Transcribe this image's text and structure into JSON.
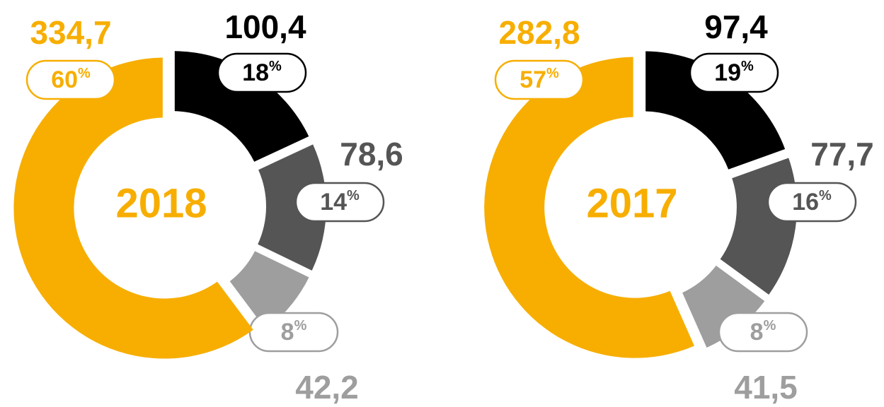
{
  "chart_data": [
    {
      "type": "pie",
      "center_label": "2018",
      "center_weight": "bold",
      "values": [
        100.4,
        78.6,
        42.2,
        334.7
      ],
      "value_labels": [
        "100,4",
        "78,6",
        "42,2",
        "334,7"
      ],
      "percentages": [
        18,
        14,
        8,
        60
      ],
      "percent_sign": "%",
      "colors": [
        "#000000",
        "#555555",
        "#9e9e9e",
        "#f7ae00"
      ]
    },
    {
      "type": "pie",
      "center_label": "2017",
      "center_weight": "normal",
      "values": [
        97.4,
        77.7,
        41.5,
        282.8
      ],
      "value_labels": [
        "97,4",
        "77,7",
        "41,5",
        "282,8"
      ],
      "percentages": [
        19,
        16,
        8,
        57
      ],
      "percent_sign": "%",
      "colors": [
        "#000000",
        "#555555",
        "#9e9e9e",
        "#f7ae00"
      ]
    }
  ]
}
